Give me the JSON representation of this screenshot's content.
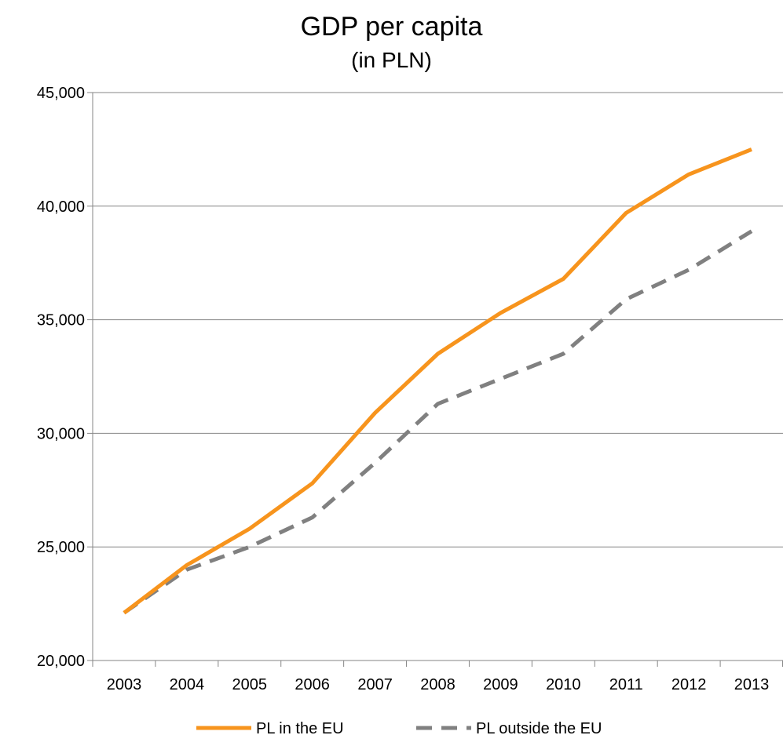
{
  "chart_data": {
    "type": "line",
    "title": "GDP per capita",
    "subtitle": "(in PLN)",
    "xlabel": "",
    "ylabel": "",
    "categories": [
      "2003",
      "2004",
      "2005",
      "2006",
      "2007",
      "2008",
      "2009",
      "2010",
      "2011",
      "2012",
      "2013"
    ],
    "ylim": [
      20000,
      45000
    ],
    "yticks": [
      20000,
      25000,
      30000,
      35000,
      40000,
      45000
    ],
    "ytick_labels": [
      "20,000",
      "25,000",
      "30,000",
      "35,000",
      "40,000",
      "45,000"
    ],
    "grid": "horizontal",
    "legend_position": "bottom",
    "series": [
      {
        "name": "PL in the EU",
        "color": "#f7941d",
        "style": "solid",
        "values": [
          22100,
          24200,
          25800,
          27800,
          30900,
          33500,
          35300,
          36800,
          39700,
          41400,
          42500
        ]
      },
      {
        "name": "PL outside the EU",
        "color": "#808080",
        "style": "dashed",
        "values": [
          22100,
          24000,
          25000,
          26300,
          28700,
          31300,
          32400,
          33500,
          35900,
          37200,
          38900
        ]
      }
    ]
  }
}
